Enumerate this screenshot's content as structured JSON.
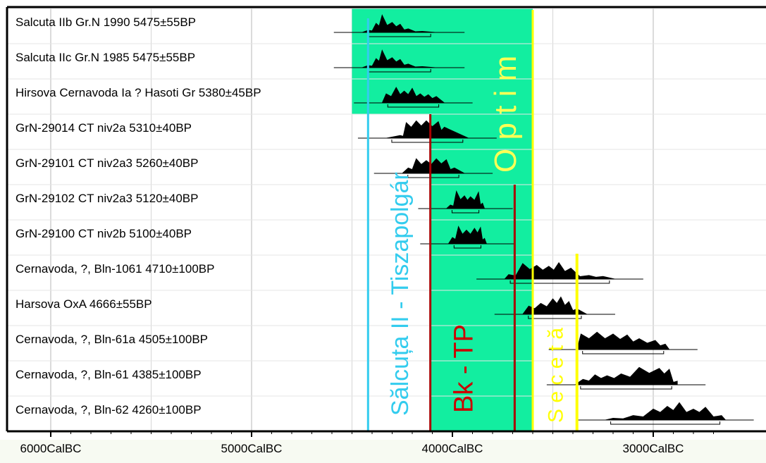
{
  "chart_data": {
    "type": "calibrated-radiocarbon-dates",
    "x_axis": {
      "range": [
        -6100,
        -2600
      ],
      "ticks": [
        {
          "value": -6000,
          "label": "6000CalBC"
        },
        {
          "value": -5000,
          "label": "5000CalBC"
        },
        {
          "value": -4000,
          "label": "4000CalBC"
        },
        {
          "value": -3000,
          "label": "3000CalBC"
        }
      ],
      "grid": true
    },
    "samples": [
      {
        "label": "Salcuta IIb Gr.N 1990  5475±55BP",
        "range_start": -4450,
        "range_end": -4080,
        "peaks": [
          [
            -4420,
            0.12
          ],
          [
            -4380,
            0.5
          ],
          [
            -4350,
            0.95
          ],
          [
            -4300,
            0.55
          ],
          [
            -4260,
            0.45
          ],
          [
            -4220,
            0.2
          ],
          [
            -4150,
            0.06
          ]
        ]
      },
      {
        "label": "Salcuta IIc Gr.N 1985  5475±55BP",
        "range_start": -4450,
        "range_end": -4080,
        "peaks": [
          [
            -4420,
            0.12
          ],
          [
            -4380,
            0.5
          ],
          [
            -4350,
            0.95
          ],
          [
            -4300,
            0.55
          ],
          [
            -4260,
            0.45
          ],
          [
            -4220,
            0.2
          ],
          [
            -4150,
            0.06
          ]
        ]
      },
      {
        "label": "Hirsova Cernavoda Ia ? Hasoti Gr  5380±45BP",
        "range_start": -4350,
        "range_end": -4040,
        "peaks": [
          [
            -4330,
            0.5
          ],
          [
            -4280,
            0.85
          ],
          [
            -4240,
            0.65
          ],
          [
            -4200,
            0.8
          ],
          [
            -4160,
            0.5
          ],
          [
            -4120,
            0.45
          ],
          [
            -4080,
            0.35
          ]
        ]
      },
      {
        "label": "GrN-29014 CT niv2a  5310±40BP",
        "range_start": -4330,
        "range_end": -3920,
        "peaks": [
          [
            -4260,
            0.15
          ],
          [
            -4230,
            0.85
          ],
          [
            -4180,
            0.95
          ],
          [
            -4130,
            0.95
          ],
          [
            -4070,
            0.9
          ],
          [
            -4040,
            0.6
          ]
        ]
      },
      {
        "label": "GrN-29101 CT niv2a3  5260±40BP",
        "range_start": -4250,
        "range_end": -3940,
        "peaks": [
          [
            -4220,
            0.3
          ],
          [
            -4180,
            0.8
          ],
          [
            -4130,
            0.7
          ],
          [
            -4080,
            0.8
          ],
          [
            -4030,
            0.75
          ],
          [
            -3990,
            0.3
          ]
        ]
      },
      {
        "label": "GrN-29102 CT niv2a3  5120±40BP",
        "range_start": -4030,
        "range_end": -3840,
        "peaks": [
          [
            -4010,
            0.2
          ],
          [
            -3980,
            0.95
          ],
          [
            -3940,
            0.7
          ],
          [
            -3910,
            0.65
          ],
          [
            -3870,
            0.9
          ],
          [
            -3850,
            0.3
          ]
        ]
      },
      {
        "label": "GrN-29100 CT niv2b  5100±40BP",
        "range_start": -4020,
        "range_end": -3830,
        "peaks": [
          [
            -4000,
            0.35
          ],
          [
            -3970,
            0.95
          ],
          [
            -3930,
            0.75
          ],
          [
            -3890,
            0.85
          ],
          [
            -3860,
            0.9
          ],
          [
            -3840,
            0.3
          ]
        ]
      },
      {
        "label": "Cernavoda, ?,  Bln-1061  4710±100BP",
        "range_start": -3740,
        "range_end": -3190,
        "peaks": [
          [
            -3720,
            0.25
          ],
          [
            -3650,
            0.85
          ],
          [
            -3580,
            0.75
          ],
          [
            -3520,
            0.7
          ],
          [
            -3470,
            0.9
          ],
          [
            -3410,
            0.6
          ],
          [
            -3320,
            0.2
          ],
          [
            -3250,
            0.15
          ]
        ]
      },
      {
        "label": "Harsova OxA  4666±55BP",
        "range_start": -3650,
        "range_end": -3330,
        "peaks": [
          [
            -3620,
            0.45
          ],
          [
            -3560,
            0.6
          ],
          [
            -3500,
            0.85
          ],
          [
            -3460,
            0.95
          ],
          [
            -3420,
            0.7
          ],
          [
            -3380,
            0.3
          ]
        ]
      },
      {
        "label": "Cernavoda, ?,  Bln-61a  4505±100BP",
        "range_start": -3380,
        "range_end": -2920,
        "peaks": [
          [
            -3360,
            0.85
          ],
          [
            -3280,
            0.95
          ],
          [
            -3200,
            0.85
          ],
          [
            -3130,
            0.8
          ],
          [
            -3070,
            0.6
          ],
          [
            -2990,
            0.5
          ],
          [
            -2940,
            0.3
          ]
        ]
      },
      {
        "label": "Cernavoda, ?,  Bln-61  4385±100BP",
        "range_start": -3390,
        "range_end": -2880,
        "peaks": [
          [
            -3350,
            0.3
          ],
          [
            -3290,
            0.55
          ],
          [
            -3230,
            0.5
          ],
          [
            -3160,
            0.6
          ],
          [
            -3070,
            0.95
          ],
          [
            -2970,
            0.9
          ],
          [
            -2920,
            0.85
          ],
          [
            -2880,
            0.2
          ]
        ]
      },
      {
        "label": "Cernavoda, ?,  Bln-62  4260±100BP",
        "range_start": -3240,
        "range_end": -2640,
        "peaks": [
          [
            -3200,
            0.1
          ],
          [
            -3100,
            0.25
          ],
          [
            -3000,
            0.6
          ],
          [
            -2930,
            0.75
          ],
          [
            -2870,
            0.95
          ],
          [
            -2800,
            0.6
          ],
          [
            -2740,
            0.7
          ],
          [
            -2660,
            0.25
          ]
        ]
      }
    ],
    "annotations": [
      {
        "text": "Sălcuța II - Tiszapolgár",
        "color": "#33ccee",
        "at": -4450
      },
      {
        "text": "Bk - TP",
        "color": "#cc0000",
        "from": -4110,
        "to": -3650
      },
      {
        "text": "O p t i m",
        "color": "#ffff55",
        "from": -4500,
        "to": -3600
      },
      {
        "text": "S e c e t ă",
        "color": "#ffff00",
        "from": -3600,
        "to": -3380
      }
    ],
    "colors": {
      "optimum_band": "#12eea0",
      "tiszapolgar_line": "#33ccee",
      "bk_tp_line": "#aa0000",
      "seceta_line": "#ffff00",
      "distribution": "#000000"
    }
  }
}
